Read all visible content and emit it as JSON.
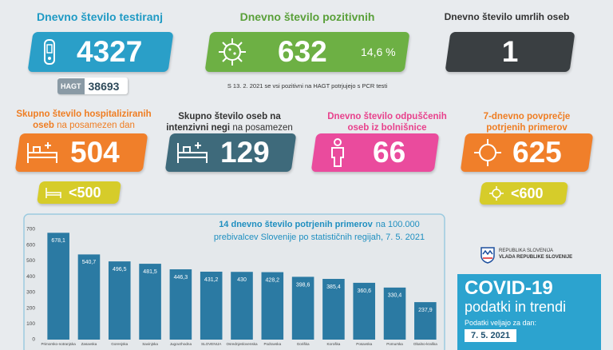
{
  "tests": {
    "label": "Dnevno število testiranj",
    "value": 4327,
    "hagt_label": "HAGT",
    "hagt_value": 38693
  },
  "positive": {
    "label": "Dnevno število pozitivnih",
    "value": 632,
    "share": "14,6 %"
  },
  "deaths": {
    "label": "Dnevno število umrlih oseb",
    "value": 1
  },
  "note": "S 13. 2. 2021 se vsi pozitivni na HAGT potrjujejo s PCR testi",
  "hospitalized": {
    "label": "Skupno število hospitaliziranih oseb",
    "label_sub": "na posamezen dan",
    "value": 504,
    "threshold": "<500"
  },
  "icu": {
    "label": "Skupno število oseb na intenzivni negi",
    "label_sub": "na posamezen dan",
    "value": 129
  },
  "discharged": {
    "label": "Dnevno število odpuščenih oseb iz bolnišnice",
    "value": 66
  },
  "avg7": {
    "label": "7-dnevno povprečje potrjenih primerov",
    "value": 625,
    "threshold": "<600"
  },
  "chart_data": {
    "type": "bar",
    "title": "14 dnevno število potrjenih primerov",
    "title_rest": "na 100.000",
    "title_line2": "prebivalcev Slovenije po statističnih regijah, 7. 5. 2021",
    "categories": [
      "Primorsko-notranjska",
      "Zasavska",
      "Gorenjska",
      "Savinjska",
      "Jugovzhodna",
      "SLOVENIJA",
      "Osrednjeslovenska",
      "Podravska",
      "Goriška",
      "Koroška",
      "Posavska",
      "Pomurska",
      "Obalno-kraška"
    ],
    "values": [
      678.1,
      540.7,
      496.5,
      481.5,
      446.3,
      431.2,
      430,
      428.2,
      398.6,
      385.4,
      360.6,
      330.4,
      237.9
    ],
    "value_labels": [
      "678,1",
      "540,7",
      "496,5",
      "481,5",
      "446,3",
      "431,2",
      "430",
      "428,2",
      "398,6",
      "385,4",
      "360,6",
      "330,4",
      "237,9"
    ],
    "color": "#2b7aa3",
    "ylim": [
      0,
      700
    ],
    "yticks": [
      0,
      100,
      200,
      300,
      400,
      500,
      600,
      700
    ],
    "grid": false
  },
  "footer": {
    "gov_line1": "REPUBLIKA SLOVENIJA",
    "gov_line2": "VLADA REPUBLIKE SLOVENIJE",
    "title": "COVID-19",
    "subtitle": "podatki in trendi",
    "valid_label": "Podatki veljajo za dan:",
    "date": "7. 5. 2021"
  }
}
